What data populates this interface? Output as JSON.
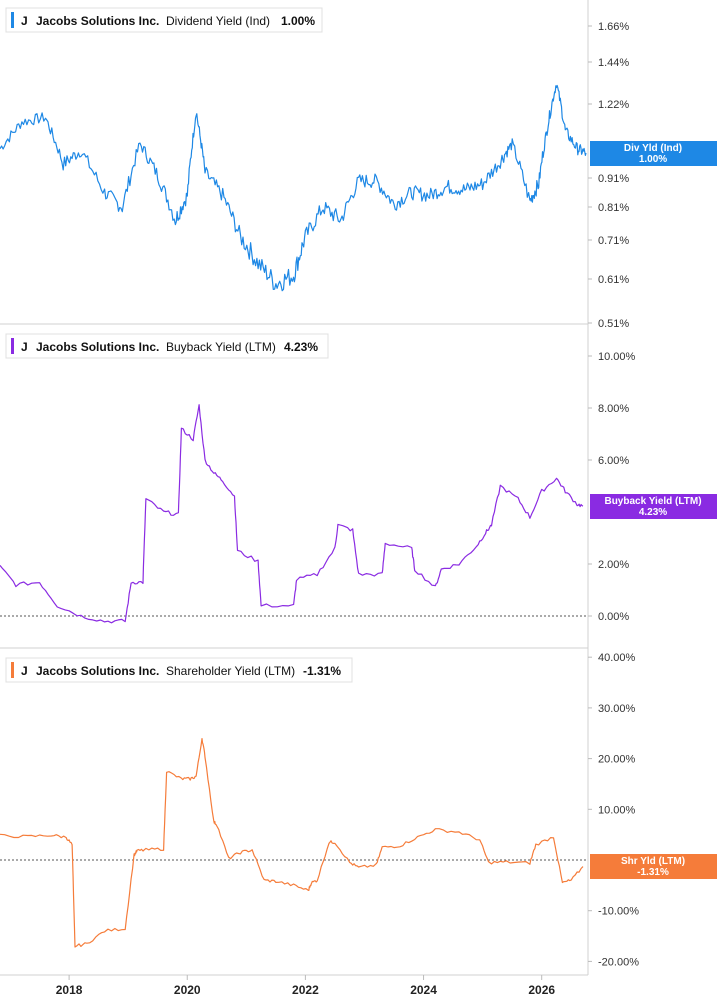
{
  "chart_data": [
    {
      "type": "line",
      "legend": {
        "symbol": "J",
        "company": "Jacobs Solutions Inc.",
        "metric": "Dividend Yield (Ind)",
        "value": "1.00%"
      },
      "color": "#1e88e5",
      "y_ticks": [
        "1.66%",
        "1.44%",
        "1.22%",
        "0.91%",
        "0.81%",
        "0.71%",
        "0.61%",
        "0.51%"
      ],
      "y_tick_values": [
        1.66,
        1.44,
        1.22,
        0.91,
        0.81,
        0.71,
        0.61,
        0.51
      ],
      "end_tag": {
        "label": "Div Yld (Ind)",
        "value": "1.00%"
      },
      "x": [
        2016.83,
        2017.2,
        2017.6,
        2017.9,
        2018.2,
        2018.6,
        2018.9,
        2019.2,
        2019.5,
        2019.8,
        2020.0,
        2020.15,
        2020.3,
        2020.6,
        2020.9,
        2021.2,
        2021.5,
        2021.8,
        2022.0,
        2022.3,
        2022.6,
        2022.9,
        2023.2,
        2023.5,
        2023.8,
        2024.1,
        2024.4,
        2024.7,
        2025.0,
        2025.3,
        2025.5,
        2025.8,
        2025.95,
        2026.1,
        2026.25,
        2026.4,
        2026.6,
        2026.75
      ],
      "values": [
        1.02,
        1.14,
        1.16,
        0.96,
        1.01,
        0.86,
        0.81,
        1.04,
        0.92,
        0.77,
        0.85,
        1.19,
        0.93,
        0.85,
        0.72,
        0.65,
        0.6,
        0.62,
        0.72,
        0.81,
        0.77,
        0.9,
        0.9,
        0.82,
        0.86,
        0.85,
        0.88,
        0.87,
        0.89,
        0.97,
        1.04,
        0.83,
        0.89,
        1.12,
        1.33,
        1.1,
        1.02,
        1.0
      ]
    },
    {
      "type": "line",
      "legend": {
        "symbol": "J",
        "company": "Jacobs Solutions Inc.",
        "metric": "Buyback Yield (LTM)",
        "value": "4.23%"
      },
      "color": "#8a2be2",
      "y_ticks": [
        "10.00%",
        "8.00%",
        "6.00%",
        "2.00%",
        "0.00%"
      ],
      "y_tick_values": [
        10,
        8,
        6,
        2,
        0
      ],
      "end_tag": {
        "label": "Buyback Yield (LTM)",
        "value": "4.23%"
      },
      "x": [
        2016.83,
        2017.1,
        2017.5,
        2017.8,
        2018.2,
        2018.6,
        2018.95,
        2019.05,
        2019.25,
        2019.3,
        2019.6,
        2019.85,
        2019.9,
        2020.1,
        2020.2,
        2020.3,
        2020.45,
        2020.6,
        2020.8,
        2020.85,
        2021.2,
        2021.25,
        2021.8,
        2021.85,
        2022.2,
        2022.5,
        2022.55,
        2022.8,
        2022.9,
        2023.3,
        2023.35,
        2023.8,
        2023.85,
        2024.2,
        2024.3,
        2024.6,
        2024.9,
        2025.05,
        2025.15,
        2025.3,
        2025.6,
        2025.8,
        2026.0,
        2026.25,
        2026.4,
        2026.6,
        2026.7
      ],
      "values": [
        1.9,
        1.2,
        1.3,
        0.4,
        0.0,
        -0.2,
        -0.2,
        1.3,
        1.3,
        4.5,
        4.0,
        3.9,
        7.2,
        6.8,
        8.1,
        6.0,
        5.5,
        5.2,
        4.6,
        2.5,
        2.1,
        0.4,
        0.4,
        1.4,
        1.6,
        2.6,
        3.5,
        3.3,
        1.6,
        1.6,
        2.8,
        2.6,
        1.8,
        1.1,
        1.8,
        2.0,
        2.7,
        3.2,
        3.5,
        5.0,
        4.5,
        3.8,
        4.8,
        5.3,
        4.8,
        4.3,
        4.23
      ]
    },
    {
      "type": "line",
      "legend": {
        "symbol": "J",
        "company": "Jacobs Solutions Inc.",
        "metric": "Shareholder Yield (LTM)",
        "value": "-1.31%"
      },
      "color": "#f57c3a",
      "y_ticks": [
        "40.00%",
        "30.00%",
        "20.00%",
        "10.00%",
        "-10.00%",
        "-20.00%"
      ],
      "y_tick_values": [
        40,
        30,
        20,
        10,
        -10,
        -20
      ],
      "end_tag": {
        "label": "Shr Yld (LTM)",
        "value": "-1.31%"
      },
      "x": [
        2016.83,
        2017.3,
        2017.7,
        2017.95,
        2018.05,
        2018.1,
        2018.3,
        2018.6,
        2018.95,
        2019.1,
        2019.15,
        2019.3,
        2019.6,
        2019.65,
        2019.9,
        2020.05,
        2020.15,
        2020.25,
        2020.3,
        2020.45,
        2020.5,
        2020.7,
        2020.9,
        2021.1,
        2021.3,
        2021.5,
        2021.8,
        2022.05,
        2022.1,
        2022.2,
        2022.4,
        2022.5,
        2022.75,
        2022.9,
        2023.2,
        2023.3,
        2023.6,
        2023.9,
        2024.2,
        2024.6,
        2024.95,
        2025.1,
        2025.4,
        2025.8,
        2025.9,
        2026.2,
        2026.35,
        2026.5,
        2026.7
      ],
      "values": [
        4.8,
        4.6,
        4.9,
        4.5,
        3.0,
        -17.0,
        -16.5,
        -14.0,
        -13.5,
        1.0,
        1.8,
        2.0,
        2.2,
        17.5,
        16.0,
        16.0,
        16.5,
        24.0,
        20.5,
        7.5,
        7.0,
        0.3,
        1.5,
        2.0,
        -4.0,
        -4.2,
        -5.0,
        -6.0,
        -4.5,
        -4.0,
        3.5,
        3.5,
        -0.5,
        -1.5,
        -1.0,
        2.5,
        2.8,
        4.5,
        6.0,
        5.5,
        4.0,
        -0.5,
        -0.4,
        -0.6,
        3.0,
        4.6,
        -4.5,
        -4.0,
        -1.31
      ]
    }
  ],
  "x_axis": {
    "ticks": [
      "2018",
      "2020",
      "2022",
      "2024",
      "2026"
    ],
    "tick_values": [
      2018,
      2020,
      2022,
      2024,
      2026
    ],
    "range": [
      2016.83,
      2026.75
    ]
  }
}
